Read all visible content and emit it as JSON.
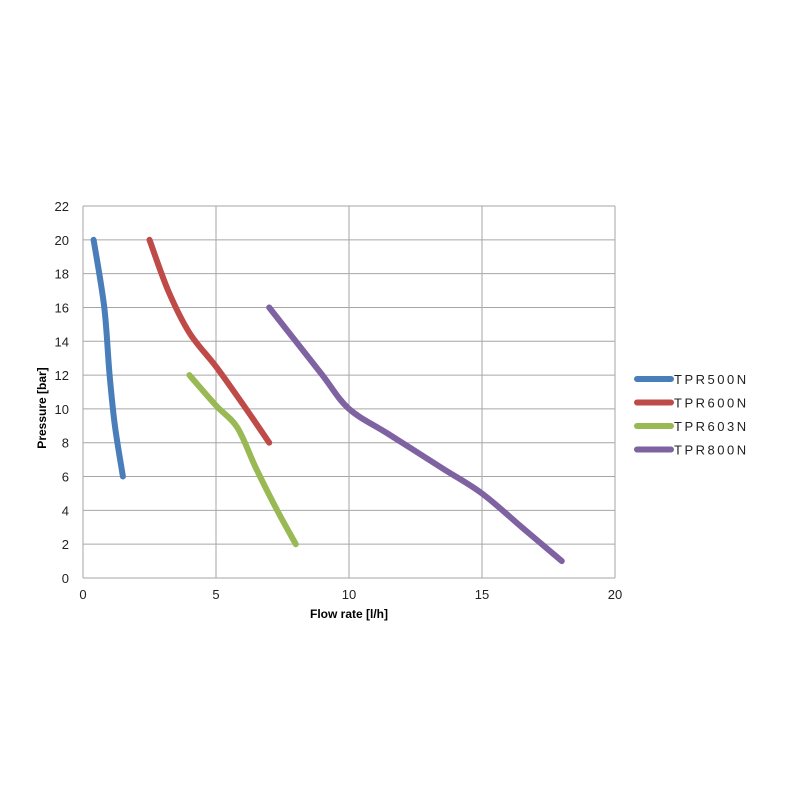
{
  "chart_data": {
    "type": "line",
    "xlabel": "Flow rate [l/h]",
    "ylabel": "Pressure [bar]",
    "xlim": [
      0,
      20
    ],
    "ylim": [
      0,
      22
    ],
    "xticks": [
      0,
      5,
      10,
      15,
      20
    ],
    "yticks": [
      0,
      2,
      4,
      6,
      8,
      10,
      12,
      14,
      16,
      18,
      20,
      22
    ],
    "grid": true,
    "legend_position": "right",
    "series": [
      {
        "name": "TPR500N",
        "color": "#4a7ebb",
        "points": [
          [
            0.4,
            20
          ],
          [
            0.8,
            16
          ],
          [
            1.0,
            12
          ],
          [
            1.2,
            9
          ],
          [
            1.5,
            6
          ]
        ]
      },
      {
        "name": "TPR600N",
        "color": "#be4b48",
        "points": [
          [
            2.5,
            20
          ],
          [
            3.2,
            17
          ],
          [
            4.0,
            14.5
          ],
          [
            5.0,
            12.5
          ],
          [
            6.0,
            10.3
          ],
          [
            7.0,
            8
          ]
        ]
      },
      {
        "name": "TPR603N",
        "color": "#98b954",
        "points": [
          [
            4.0,
            12
          ],
          [
            5.0,
            10.2
          ],
          [
            5.8,
            8.9
          ],
          [
            6.5,
            6.5
          ],
          [
            7.3,
            4
          ],
          [
            8.0,
            2
          ]
        ]
      },
      {
        "name": "TPR800N",
        "color": "#7e62a1",
        "points": [
          [
            7.0,
            16
          ],
          [
            8.0,
            14
          ],
          [
            9.0,
            12
          ],
          [
            10.0,
            10
          ],
          [
            11.5,
            8.5
          ],
          [
            13.5,
            6.5
          ],
          [
            15.0,
            5
          ],
          [
            16.5,
            3
          ],
          [
            18.0,
            1
          ]
        ]
      }
    ]
  }
}
